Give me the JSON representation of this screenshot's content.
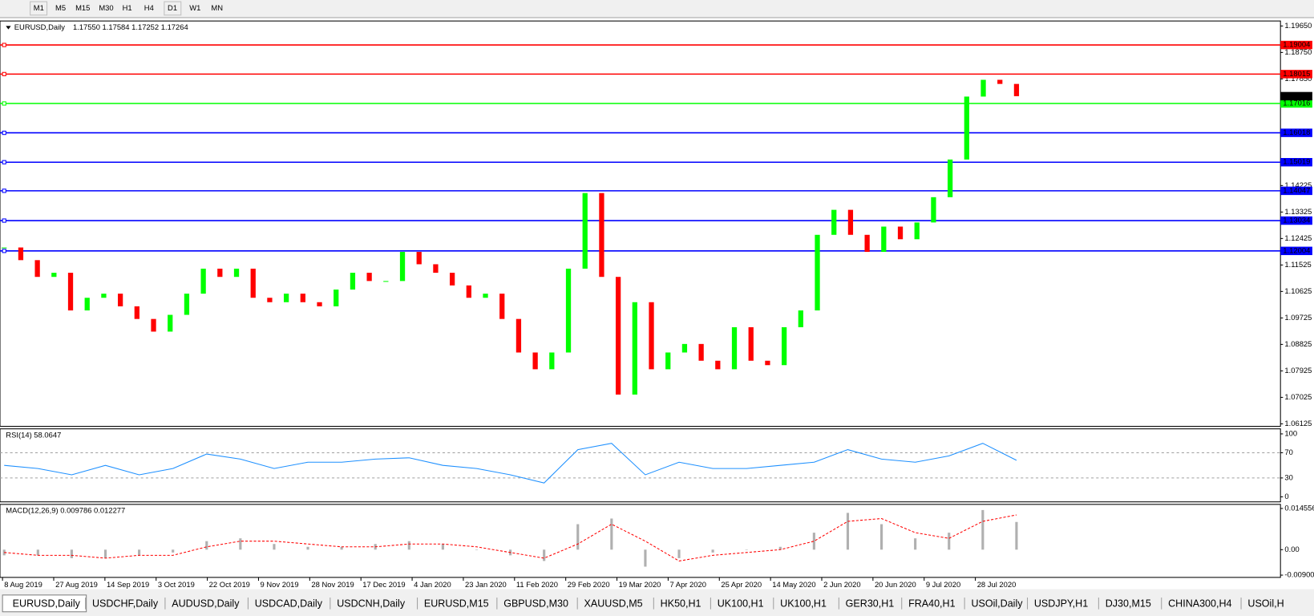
{
  "toolbar": {
    "buttons": [
      "M1",
      "M5",
      "M15",
      "M30",
      "H1",
      "H4",
      "D1",
      "W1",
      "MN"
    ]
  },
  "chart_data": [
    {
      "type": "candlestick",
      "title": "EURUSD,Daily",
      "quote": "1.17550 1.17584 1.17252 1.17264",
      "values": [
        1.1212,
        1.1169,
        1.1112,
        1.1126,
        1.0998,
        1.1041,
        1.1055,
        1.1012,
        1.0969,
        1.0926,
        1.0983,
        1.1055,
        1.114,
        1.1112,
        1.114,
        1.1041,
        1.1026,
        1.1055,
        1.1026,
        1.1012,
        1.1069,
        1.1126,
        1.1098,
        1.1098,
        1.1197,
        1.1155,
        1.1126,
        1.1083,
        1.1041,
        1.1055,
        1.0969,
        1.0855,
        1.0798,
        1.0855,
        1.114,
        1.1397,
        1.1112,
        1.0712,
        1.1026,
        1.0798,
        1.0855,
        1.0884,
        1.0827,
        1.0798,
        1.0941,
        1.0827,
        1.0812,
        1.0941,
        1.0998,
        1.1255,
        1.134,
        1.1255,
        1.1197,
        1.1283,
        1.124,
        1.1297,
        1.1383,
        1.1511,
        1.1725,
        1.1782,
        1.1768,
        1.17264
      ],
      "up_color": "#00ff00",
      "down_color": "#ff0000",
      "ylim": [
        1.0604,
        1.1982
      ],
      "yticks": [
        {
          "value": 1.1965,
          "label": "1.19650"
        },
        {
          "value": 1.1875,
          "label": "1.18750"
        },
        {
          "value": 1.1785,
          "label": "1.17850"
        },
        1.14225,
        1.13325,
        1.12425,
        1.11525,
        1.10625,
        1.09725,
        1.08825,
        1.07925,
        1.07025,
        1.06125
      ],
      "levels": [
        {
          "value": 1.19004,
          "color": "#ff0000"
        },
        {
          "value": 1.18015,
          "color": "#ff0000"
        },
        {
          "value": 1.17016,
          "color": "#00ff00"
        },
        {
          "value": 1.16018,
          "color": "#0000ff"
        },
        {
          "value": 1.15019,
          "color": "#0000ff"
        },
        {
          "value": 1.14047,
          "color": "#0000ff"
        },
        {
          "value": 1.13034,
          "color": "#0000ff"
        },
        {
          "value": 1.12004,
          "color": "#0000ff"
        }
      ],
      "last_price": 1.17264
    },
    {
      "type": "line",
      "title": "RSI(14) 58.0647",
      "values": [
        50,
        45,
        35,
        50,
        35,
        45,
        68,
        60,
        45,
        55,
        55,
        60,
        62,
        50,
        45,
        35,
        22,
        75,
        85,
        35,
        55,
        45,
        45,
        50,
        55,
        75,
        60,
        55,
        65,
        85,
        58.0647
      ],
      "color": "#1e90ff",
      "ylim": [
        -8,
        108
      ],
      "yticks": [
        100,
        70,
        30,
        0
      ],
      "levels": [
        70,
        30
      ]
    },
    {
      "type": "macd",
      "title": "MACD(12,26,9) 0.009786 0.012277",
      "series": [
        {
          "style": "bars",
          "color": "#b0b0b0",
          "values": [
            -0.002,
            -0.002,
            -0.003,
            -0.003,
            -0.002,
            -0.001,
            0.003,
            0.004,
            0.002,
            0.001,
            0.001,
            0.002,
            0.003,
            0.002,
            0.0,
            -0.002,
            -0.004,
            0.009,
            0.011,
            -0.006,
            -0.003,
            -0.001,
            0.0,
            0.001,
            0.006,
            0.013,
            0.009,
            0.004,
            0.006,
            0.014,
            0.009786
          ]
        },
        {
          "style": "dashed",
          "color": "#ff0000",
          "values": [
            -0.001,
            -0.002,
            -0.002,
            -0.003,
            -0.002,
            -0.002,
            0.001,
            0.003,
            0.003,
            0.002,
            0.001,
            0.001,
            0.002,
            0.002,
            0.001,
            -0.001,
            -0.003,
            0.002,
            0.009,
            0.003,
            -0.004,
            -0.002,
            -0.001,
            0.0,
            0.003,
            0.01,
            0.011,
            0.006,
            0.004,
            0.01,
            0.012277
          ]
        }
      ],
      "ylim": [
        -0.0098,
        0.016
      ],
      "yticks": [
        0.014556,
        {
          "value": 0,
          "label": "0.00"
        },
        -0.009001
      ]
    }
  ],
  "time_axis": [
    "8 Aug 2019",
    "27 Aug 2019",
    "14 Sep 2019",
    "3 Oct 2019",
    "22 Oct 2019",
    "9 Nov 2019",
    "28 Nov 2019",
    "17 Dec 2019",
    "4 Jan 2020",
    "23 Jan 2020",
    "11 Feb 2020",
    "29 Feb 2020",
    "19 Mar 2020",
    "7 Apr 2020",
    "25 Apr 2020",
    "14 May 2020",
    "2 Jun 2020",
    "20 Jun 2020",
    "9 Jul 2020",
    "28 Jul 2020"
  ],
  "tabs": [
    "EURUSD,Daily",
    "USDCHF,Daily",
    "AUDUSD,Daily",
    "USDCAD,Daily",
    "USDCNH,Daily",
    "EURUSD,M15",
    "GBPUSD,M30",
    "XAUUSD,M5",
    "HK50,H1",
    "UK100,H1",
    "UK100,H1",
    "GER30,H1",
    "FRA40,H1",
    "USOil,Daily",
    "USDJPY,H1",
    "DJ30,M15",
    "CHINA300,H4",
    "USOil,H"
  ]
}
